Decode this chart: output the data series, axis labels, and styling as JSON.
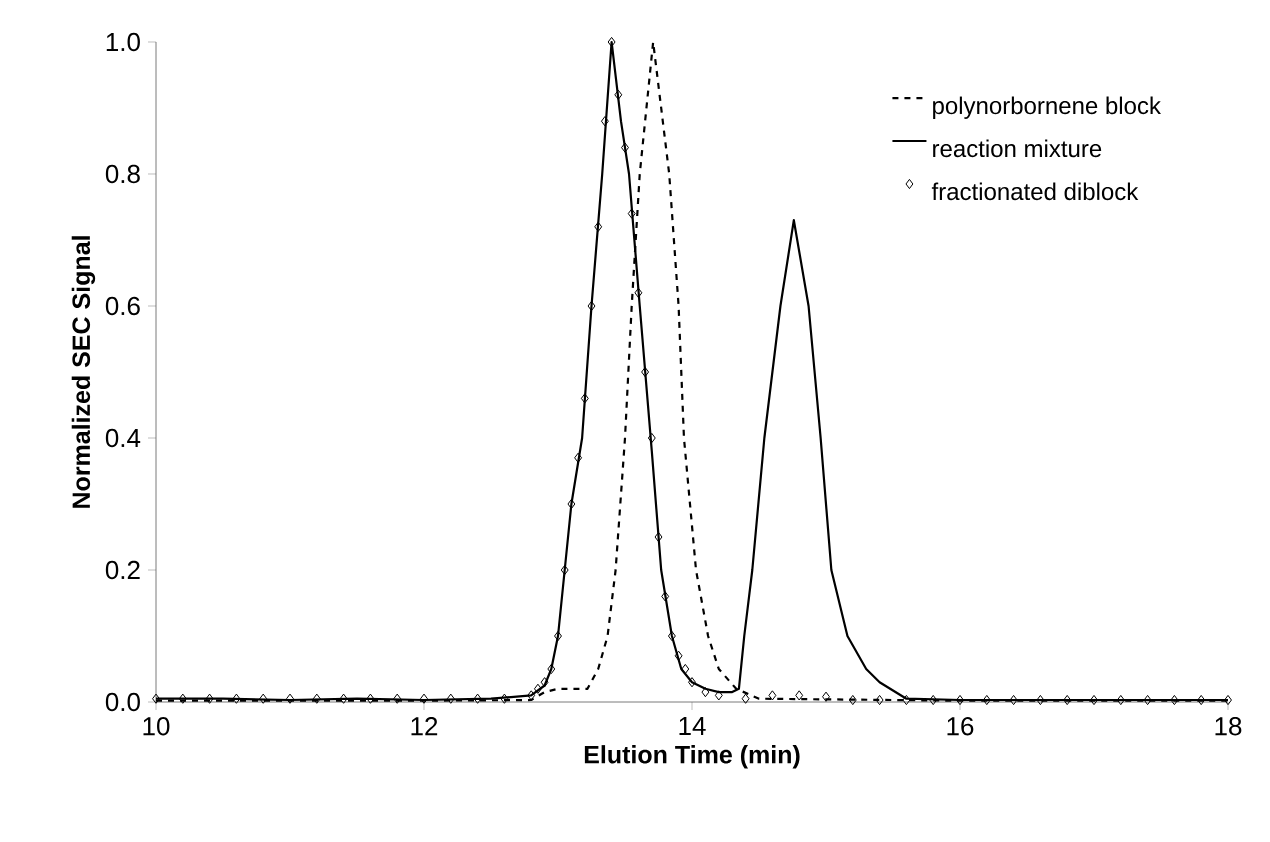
{
  "chart_data": {
    "type": "line",
    "xlabel": "Elution Time (min)",
    "ylabel": "Normalized SEC Signal",
    "xlim": [
      10,
      18
    ],
    "xticks": [
      10,
      12,
      14,
      16,
      18
    ],
    "ylim": [
      0,
      1
    ],
    "yticks": [
      {
        "value": 0,
        "label": "0.0"
      },
      {
        "value": 0.2,
        "label": "0.2"
      },
      {
        "value": 0.4,
        "label": "0.4"
      },
      {
        "value": 0.6,
        "label": "0.6"
      },
      {
        "value": 0.8,
        "label": "0.8"
      },
      {
        "value": 1,
        "label": "1.0"
      }
    ],
    "legend": "top right",
    "grid": false,
    "series": [
      {
        "name": "polynorbornene block",
        "line_style": "dashed",
        "marker": "none",
        "color": "#000000",
        "x": [
          10,
          12,
          12.8,
          12.9,
          13.0,
          13.1,
          13.22,
          13.3,
          13.37,
          13.43,
          13.5,
          13.55,
          13.61,
          13.71,
          13.83,
          13.9,
          13.94,
          14.03,
          14.12,
          14.2,
          14.33,
          14.5,
          16,
          18
        ],
        "values": [
          0.002,
          0.002,
          0.003,
          0.015,
          0.02,
          0.02,
          0.02,
          0.05,
          0.1,
          0.2,
          0.4,
          0.6,
          0.8,
          1.0,
          0.8,
          0.6,
          0.4,
          0.2,
          0.1,
          0.05,
          0.02,
          0.005,
          0.002,
          0.002
        ]
      },
      {
        "name": "reaction mixture",
        "line_style": "solid",
        "marker": "none",
        "color": "#000000",
        "x": [
          10,
          10.5,
          11,
          11.5,
          12,
          12.5,
          12.8,
          12.9,
          12.95,
          13.0,
          13.05,
          13.1,
          13.18,
          13.25,
          13.33,
          13.4,
          13.47,
          13.53,
          13.61,
          13.7,
          13.77,
          13.85,
          13.92,
          14.0,
          14.1,
          14.2,
          14.3,
          14.35,
          14.39,
          14.45,
          14.54,
          14.66,
          14.76,
          14.87,
          14.96,
          15.04,
          15.16,
          15.3,
          15.4,
          15.6,
          16,
          17,
          18
        ],
        "values": [
          0.005,
          0.005,
          0.003,
          0.005,
          0.003,
          0.005,
          0.01,
          0.025,
          0.05,
          0.1,
          0.2,
          0.3,
          0.4,
          0.6,
          0.8,
          1.0,
          0.88,
          0.8,
          0.6,
          0.38,
          0.2,
          0.1,
          0.05,
          0.03,
          0.02,
          0.015,
          0.015,
          0.02,
          0.1,
          0.2,
          0.4,
          0.6,
          0.73,
          0.6,
          0.4,
          0.2,
          0.1,
          0.05,
          0.03,
          0.005,
          0.003,
          0.003,
          0.003
        ]
      },
      {
        "name": "fractionated diblock",
        "type": "scatter",
        "marker": "diamond",
        "color": "#000000",
        "x": [
          10,
          10.2,
          10.4,
          10.6,
          10.8,
          11,
          11.2,
          11.4,
          11.6,
          11.8,
          12,
          12.2,
          12.4,
          12.6,
          12.8,
          12.85,
          12.9,
          12.95,
          13.0,
          13.05,
          13.1,
          13.15,
          13.2,
          13.25,
          13.3,
          13.35,
          13.4,
          13.45,
          13.5,
          13.55,
          13.6,
          13.65,
          13.7,
          13.75,
          13.8,
          13.85,
          13.9,
          13.95,
          14.0,
          14.1,
          14.2,
          14.4,
          14.6,
          14.8,
          15.0,
          15.2,
          15.4,
          15.6,
          15.8,
          16,
          16.2,
          16.4,
          16.6,
          16.8,
          17,
          17.2,
          17.4,
          17.6,
          17.8,
          18
        ],
        "values": [
          0.005,
          0.005,
          0.005,
          0.005,
          0.005,
          0.005,
          0.005,
          0.005,
          0.005,
          0.005,
          0.005,
          0.005,
          0.005,
          0.005,
          0.01,
          0.02,
          0.03,
          0.05,
          0.1,
          0.2,
          0.3,
          0.37,
          0.46,
          0.6,
          0.72,
          0.88,
          1.0,
          0.92,
          0.84,
          0.74,
          0.62,
          0.5,
          0.4,
          0.25,
          0.16,
          0.1,
          0.07,
          0.05,
          0.03,
          0.015,
          0.01,
          0.005,
          0.01,
          0.01,
          0.008,
          0.003,
          0.003,
          0.003,
          0.003,
          0.003,
          0.003,
          0.003,
          0.003,
          0.003,
          0.003,
          0.003,
          0.003,
          0.003,
          0.003,
          0.003
        ]
      }
    ]
  }
}
